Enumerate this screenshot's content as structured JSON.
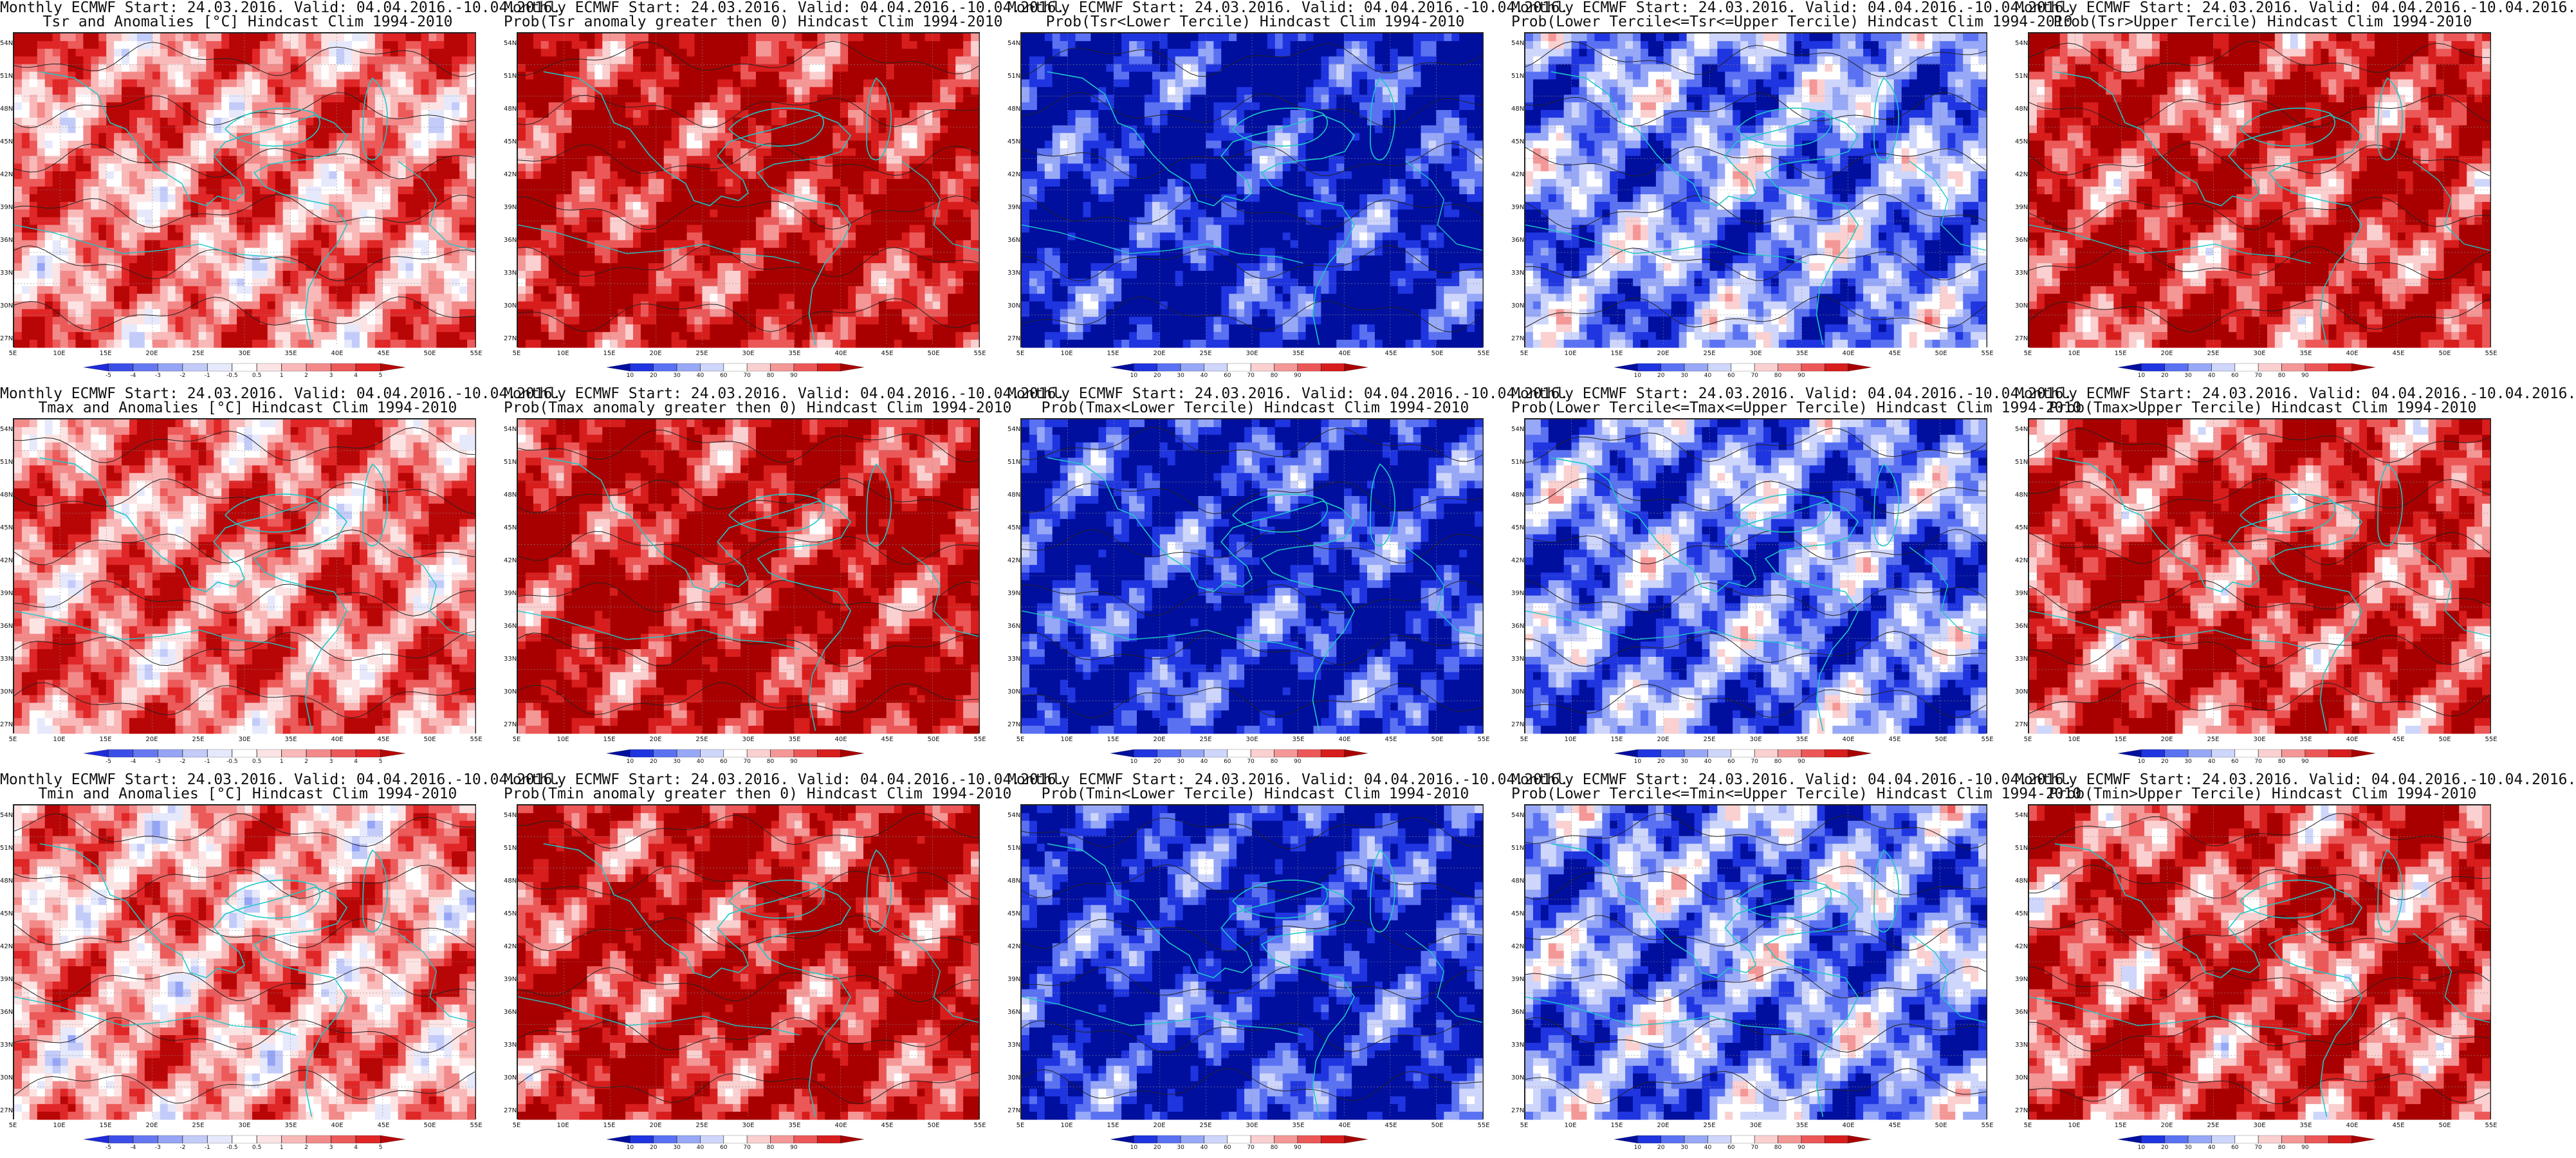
{
  "lat_ticks": [
    "54N",
    "51N",
    "48N",
    "45N",
    "42N",
    "39N",
    "36N",
    "33N",
    "30N",
    "27N"
  ],
  "lon_ticks": [
    "5E",
    "10E",
    "15E",
    "20E",
    "25E",
    "30E",
    "35E",
    "40E",
    "45E",
    "50E",
    "55E"
  ],
  "colors": {
    "anomaly": [
      "#1e2bd8",
      "#3c4ee8",
      "#6678f0",
      "#95a4f5",
      "#c3cbf9",
      "#e6e9fc",
      "#ffffff",
      "#fde4e4",
      "#f9b9b9",
      "#f38a8a",
      "#ec5a5a",
      "#e02626",
      "#b80606"
    ],
    "probability": [
      "#000f9e",
      "#1f35e0",
      "#5a72f2",
      "#97a8f7",
      "#cfd6fb",
      "#ffffff",
      "#fbd0d0",
      "#f49797",
      "#ec5858",
      "#d81d1d",
      "#a80000"
    ],
    "coast": "#1ec8c8",
    "contour": "#222222"
  },
  "colorbars": {
    "anomaly": [
      "-5",
      "-4",
      "-3",
      "-2",
      "-1",
      "-0.5",
      "0.5",
      "1",
      "2",
      "3",
      "4",
      "5"
    ],
    "probability": [
      "10",
      "20",
      "30",
      "40",
      "60",
      "70",
      "80",
      "90"
    ]
  },
  "panels": [
    {
      "line1": "Monthly ECMWF Start: 24.03.2016. Valid: 04.04.2016.-10.04.2016.",
      "line2": "Tsr and Anomalies [°C] Hindcast Clim 1994-2010",
      "scale": "anomaly",
      "bias": 0.5
    },
    {
      "line1": "Monthly ECMWF Start: 24.03.2016. Valid: 04.04.2016.-10.04.2016.",
      "line2": "Prob(Tsr anomaly greater then 0) Hindcast Clim 1994-2010",
      "scale": "probability",
      "bias": 0.85
    },
    {
      "line1": "Monthly ECMWF Start: 24.03.2016. Valid: 04.04.2016.-10.04.2016.",
      "line2": "Prob(Tsr<Lower Tercile) Hindcast Clim 1994-2010",
      "scale": "probability",
      "bias": -0.9
    },
    {
      "line1": "Monthly ECMWF Start: 24.03.2016. Valid: 04.04.2016.-10.04.2016.",
      "line2": "Prob(Lower Tercile<=Tsr<=Upper Tercile) Hindcast Clim 1994-2010",
      "scale": "probability",
      "bias": -0.45
    },
    {
      "line1": "Monthly ECMWF Start: 24.03.2016. Valid: 04.04.2016.-10.04.2016.",
      "line2": "Prob(Tsr>Upper Tercile) Hindcast Clim 1994-2010",
      "scale": "probability",
      "bias": 0.75
    },
    {
      "line1": "Monthly ECMWF Start: 24.03.2016. Valid: 04.04.2016.-10.04.2016.",
      "line2": "Tmax and Anomalies [°C] Hindcast Clim 1994-2010",
      "scale": "anomaly",
      "bias": 0.55
    },
    {
      "line1": "Monthly ECMWF Start: 24.03.2016. Valid: 04.04.2016.-10.04.2016.",
      "line2": "Prob(Tmax anomaly greater then 0) Hindcast Clim 1994-2010",
      "scale": "probability",
      "bias": 0.85
    },
    {
      "line1": "Monthly ECMWF Start: 24.03.2016. Valid: 04.04.2016.-10.04.2016.",
      "line2": "Prob(Tmax<Lower Tercile) Hindcast Clim 1994-2010",
      "scale": "probability",
      "bias": -0.85
    },
    {
      "line1": "Monthly ECMWF Start: 24.03.2016. Valid: 04.04.2016.-10.04.2016.",
      "line2": "Prob(Lower Tercile<=Tmax<=Upper Tercile) Hindcast Clim 1994-2010",
      "scale": "probability",
      "bias": -0.5
    },
    {
      "line1": "Monthly ECMWF Start: 24.03.2016. Valid: 04.04.2016.-10.04.2016.",
      "line2": "Prob(Tmax>Upper Tercile) Hindcast Clim 1994-2010",
      "scale": "probability",
      "bias": 0.7
    },
    {
      "line1": "Monthly ECMWF Start: 24.03.2016. Valid: 04.04.2016.-10.04.2016.",
      "line2": "Tmin and Anomalies [°C] Hindcast Clim 1994-2010",
      "scale": "anomaly",
      "bias": 0.4
    },
    {
      "line1": "Monthly ECMWF Start: 24.03.2016. Valid: 04.04.2016.-10.04.2016.",
      "line2": "Prob(Tmin anomaly greater then 0) Hindcast Clim 1994-2010",
      "scale": "probability",
      "bias": 0.8
    },
    {
      "line1": "Monthly ECMWF Start: 24.03.2016. Valid: 04.04.2016.-10.04.2016.",
      "line2": "Prob(Tmin<Lower Tercile) Hindcast Clim 1994-2010",
      "scale": "probability",
      "bias": -0.85
    },
    {
      "line1": "Monthly ECMWF Start: 24.03.2016. Valid: 04.04.2016.-10.04.2016.",
      "line2": "Prob(Lower Tercile<=Tmin<=Upper Tercile) Hindcast Clim 1994-2010",
      "scale": "probability",
      "bias": -0.45
    },
    {
      "line1": "Monthly ECMWF Start: 24.03.2016. Valid: 04.04.2016.-10.04.2016.",
      "line2": "Prob(Tmin>Upper Tercile) Hindcast Clim 1994-2010",
      "scale": "probability",
      "bias": 0.65
    }
  ]
}
